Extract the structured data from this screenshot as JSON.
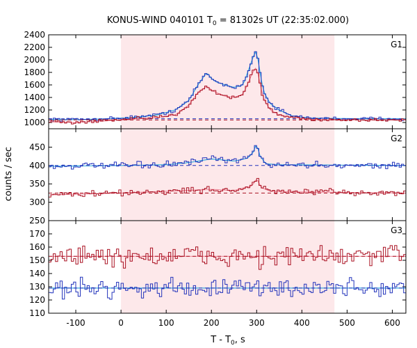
{
  "chart_data": {
    "type": "line",
    "title": "KONUS-WIND 040101 T",
    "title_sub": "0",
    "title_rest": " = 81302s UT (22:35:02.000)",
    "xlabel": "T - T",
    "xlabel_sub": "0",
    "xlabel_rest": ", s",
    "ylabel": "counts / sec",
    "xlim": [
      -160,
      630
    ],
    "xticks": [
      -100,
      0,
      100,
      200,
      300,
      400,
      500,
      600
    ],
    "highlight_interval": [
      0,
      472
    ],
    "grid": false,
    "colors": {
      "upper": "#2233bb",
      "upper_fit": "#33aadd",
      "lower": "#aa1122",
      "lower_fit": "#ee8899",
      "highlight": "#fde8ea"
    },
    "panels": [
      {
        "label": "G1",
        "ylim": [
          900,
          2400
        ],
        "yticks": [
          1000,
          1200,
          1400,
          1600,
          1800,
          2000,
          2200,
          2400
        ],
        "series": [
          {
            "role": "upper",
            "baseline": 1060,
            "noise": 20,
            "x": [
              -160,
              -100,
              -50,
              0,
              40,
              80,
              120,
              150,
              170,
              190,
              200,
              210,
              230,
              250,
              270,
              285,
              295,
              300,
              305,
              315,
              330,
              350,
              380,
              420,
              470,
              520,
              630
            ],
            "y": [
              1050,
              1045,
              1055,
              1070,
              1090,
              1120,
              1200,
              1350,
              1600,
              1800,
              1700,
              1650,
              1600,
              1560,
              1600,
              1900,
              2100,
              2150,
              1900,
              1500,
              1300,
              1200,
              1100,
              1070,
              1065,
              1060,
              1060
            ]
          },
          {
            "role": "lower",
            "baseline": 1040,
            "noise": 20,
            "x": [
              -160,
              -100,
              -50,
              0,
              40,
              80,
              120,
              150,
              170,
              190,
              200,
              210,
              230,
              250,
              270,
              285,
              295,
              300,
              305,
              315,
              330,
              350,
              380,
              420,
              470,
              520,
              630
            ],
            "y": [
              1010,
              1000,
              1020,
              1040,
              1060,
              1080,
              1120,
              1280,
              1480,
              1580,
              1520,
              1480,
              1420,
              1400,
              1450,
              1700,
              1850,
              1880,
              1700,
              1380,
              1200,
              1120,
              1080,
              1050,
              1045,
              1040,
              1040
            ]
          }
        ]
      },
      {
        "label": "G2",
        "ylim": [
          250,
          500
        ],
        "yticks": [
          250,
          300,
          350,
          400,
          450
        ],
        "series": [
          {
            "role": "upper",
            "baseline": 400,
            "noise": 6,
            "x": [
              -160,
              0,
              100,
              150,
              200,
              250,
              280,
              295,
              300,
              305,
              320,
              350,
              630
            ],
            "y": [
              398,
              400,
              402,
              408,
              418,
              412,
              420,
              440,
              465,
              430,
              405,
              402,
              400
            ]
          },
          {
            "role": "lower",
            "baseline": 325,
            "noise": 6,
            "x": [
              -160,
              0,
              100,
              200,
              250,
              290,
              300,
              310,
              330,
              400,
              630
            ],
            "y": [
              320,
              325,
              330,
              335,
              332,
              345,
              365,
              340,
              330,
              328,
              325
            ]
          }
        ]
      },
      {
        "label": "G3",
        "ylim": [
          110,
          180
        ],
        "yticks": [
          110,
          120,
          130,
          140,
          150,
          160,
          170
        ],
        "series": [
          {
            "role": "upper",
            "baseline": 129,
            "noise": 5,
            "x": [
              -160,
              630
            ],
            "y": [
              129,
              129
            ]
          },
          {
            "role": "lower",
            "baseline": 153,
            "noise": 6,
            "x": [
              -160,
              630
            ],
            "y": [
              153,
              153
            ]
          }
        ]
      }
    ]
  }
}
